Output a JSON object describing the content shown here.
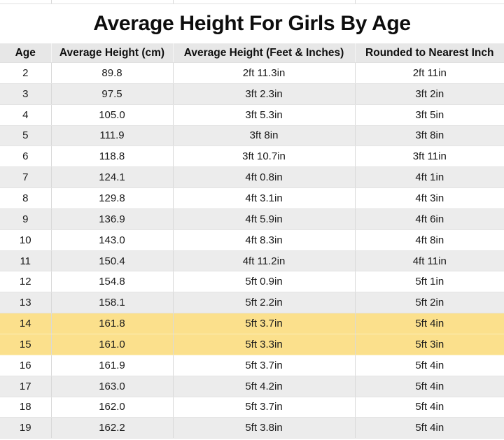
{
  "chart_data": {
    "type": "table",
    "title": "Average Height For Girls By Age",
    "columns": [
      "Age",
      "Average Height (cm)",
      "Average Height (Feet & Inches)",
      "Rounded to Nearest Inch"
    ],
    "rows": [
      {
        "age": "2",
        "cm": "89.8",
        "ftin": "2ft 11.3in",
        "rounded": "2ft 11in",
        "highlight": false
      },
      {
        "age": "3",
        "cm": "97.5",
        "ftin": "3ft 2.3in",
        "rounded": "3ft 2in",
        "highlight": false
      },
      {
        "age": "4",
        "cm": "105.0",
        "ftin": "3ft 5.3in",
        "rounded": "3ft 5in",
        "highlight": false
      },
      {
        "age": "5",
        "cm": "111.9",
        "ftin": "3ft 8in",
        "rounded": "3ft 8in",
        "highlight": false
      },
      {
        "age": "6",
        "cm": "118.8",
        "ftin": "3ft 10.7in",
        "rounded": "3ft 11in",
        "highlight": false
      },
      {
        "age": "7",
        "cm": "124.1",
        "ftin": "4ft 0.8in",
        "rounded": "4ft 1in",
        "highlight": false
      },
      {
        "age": "8",
        "cm": "129.8",
        "ftin": "4ft 3.1in",
        "rounded": "4ft 3in",
        "highlight": false
      },
      {
        "age": "9",
        "cm": "136.9",
        "ftin": "4ft 5.9in",
        "rounded": "4ft 6in",
        "highlight": false
      },
      {
        "age": "10",
        "cm": "143.0",
        "ftin": "4ft 8.3in",
        "rounded": "4ft 8in",
        "highlight": false
      },
      {
        "age": "11",
        "cm": "150.4",
        "ftin": "4ft 11.2in",
        "rounded": "4ft 11in",
        "highlight": false
      },
      {
        "age": "12",
        "cm": "154.8",
        "ftin": "5ft 0.9in",
        "rounded": "5ft 1in",
        "highlight": false
      },
      {
        "age": "13",
        "cm": "158.1",
        "ftin": "5ft 2.2in",
        "rounded": "5ft 2in",
        "highlight": false
      },
      {
        "age": "14",
        "cm": "161.8",
        "ftin": "5ft 3.7in",
        "rounded": "5ft 4in",
        "highlight": true
      },
      {
        "age": "15",
        "cm": "161.0",
        "ftin": "5ft 3.3in",
        "rounded": "5ft 3in",
        "highlight": true
      },
      {
        "age": "16",
        "cm": "161.9",
        "ftin": "5ft 3.7in",
        "rounded": "5ft 4in",
        "highlight": false
      },
      {
        "age": "17",
        "cm": "163.0",
        "ftin": "5ft 4.2in",
        "rounded": "5ft 4in",
        "highlight": false
      },
      {
        "age": "18",
        "cm": "162.0",
        "ftin": "5ft 3.7in",
        "rounded": "5ft 4in",
        "highlight": false
      },
      {
        "age": "19",
        "cm": "162.2",
        "ftin": "5ft 3.8in",
        "rounded": "5ft 4in",
        "highlight": false
      }
    ],
    "highlighted_ages": [
      "14",
      "15"
    ],
    "colors": {
      "highlight_row": "#FBE08C",
      "alt_row": "#ECECEC",
      "header_bg": "#E7E7E7",
      "text": "#1A1A1A"
    },
    "layout_hints": {
      "grid": true,
      "alignment": "center",
      "alternating_rows": true
    }
  }
}
